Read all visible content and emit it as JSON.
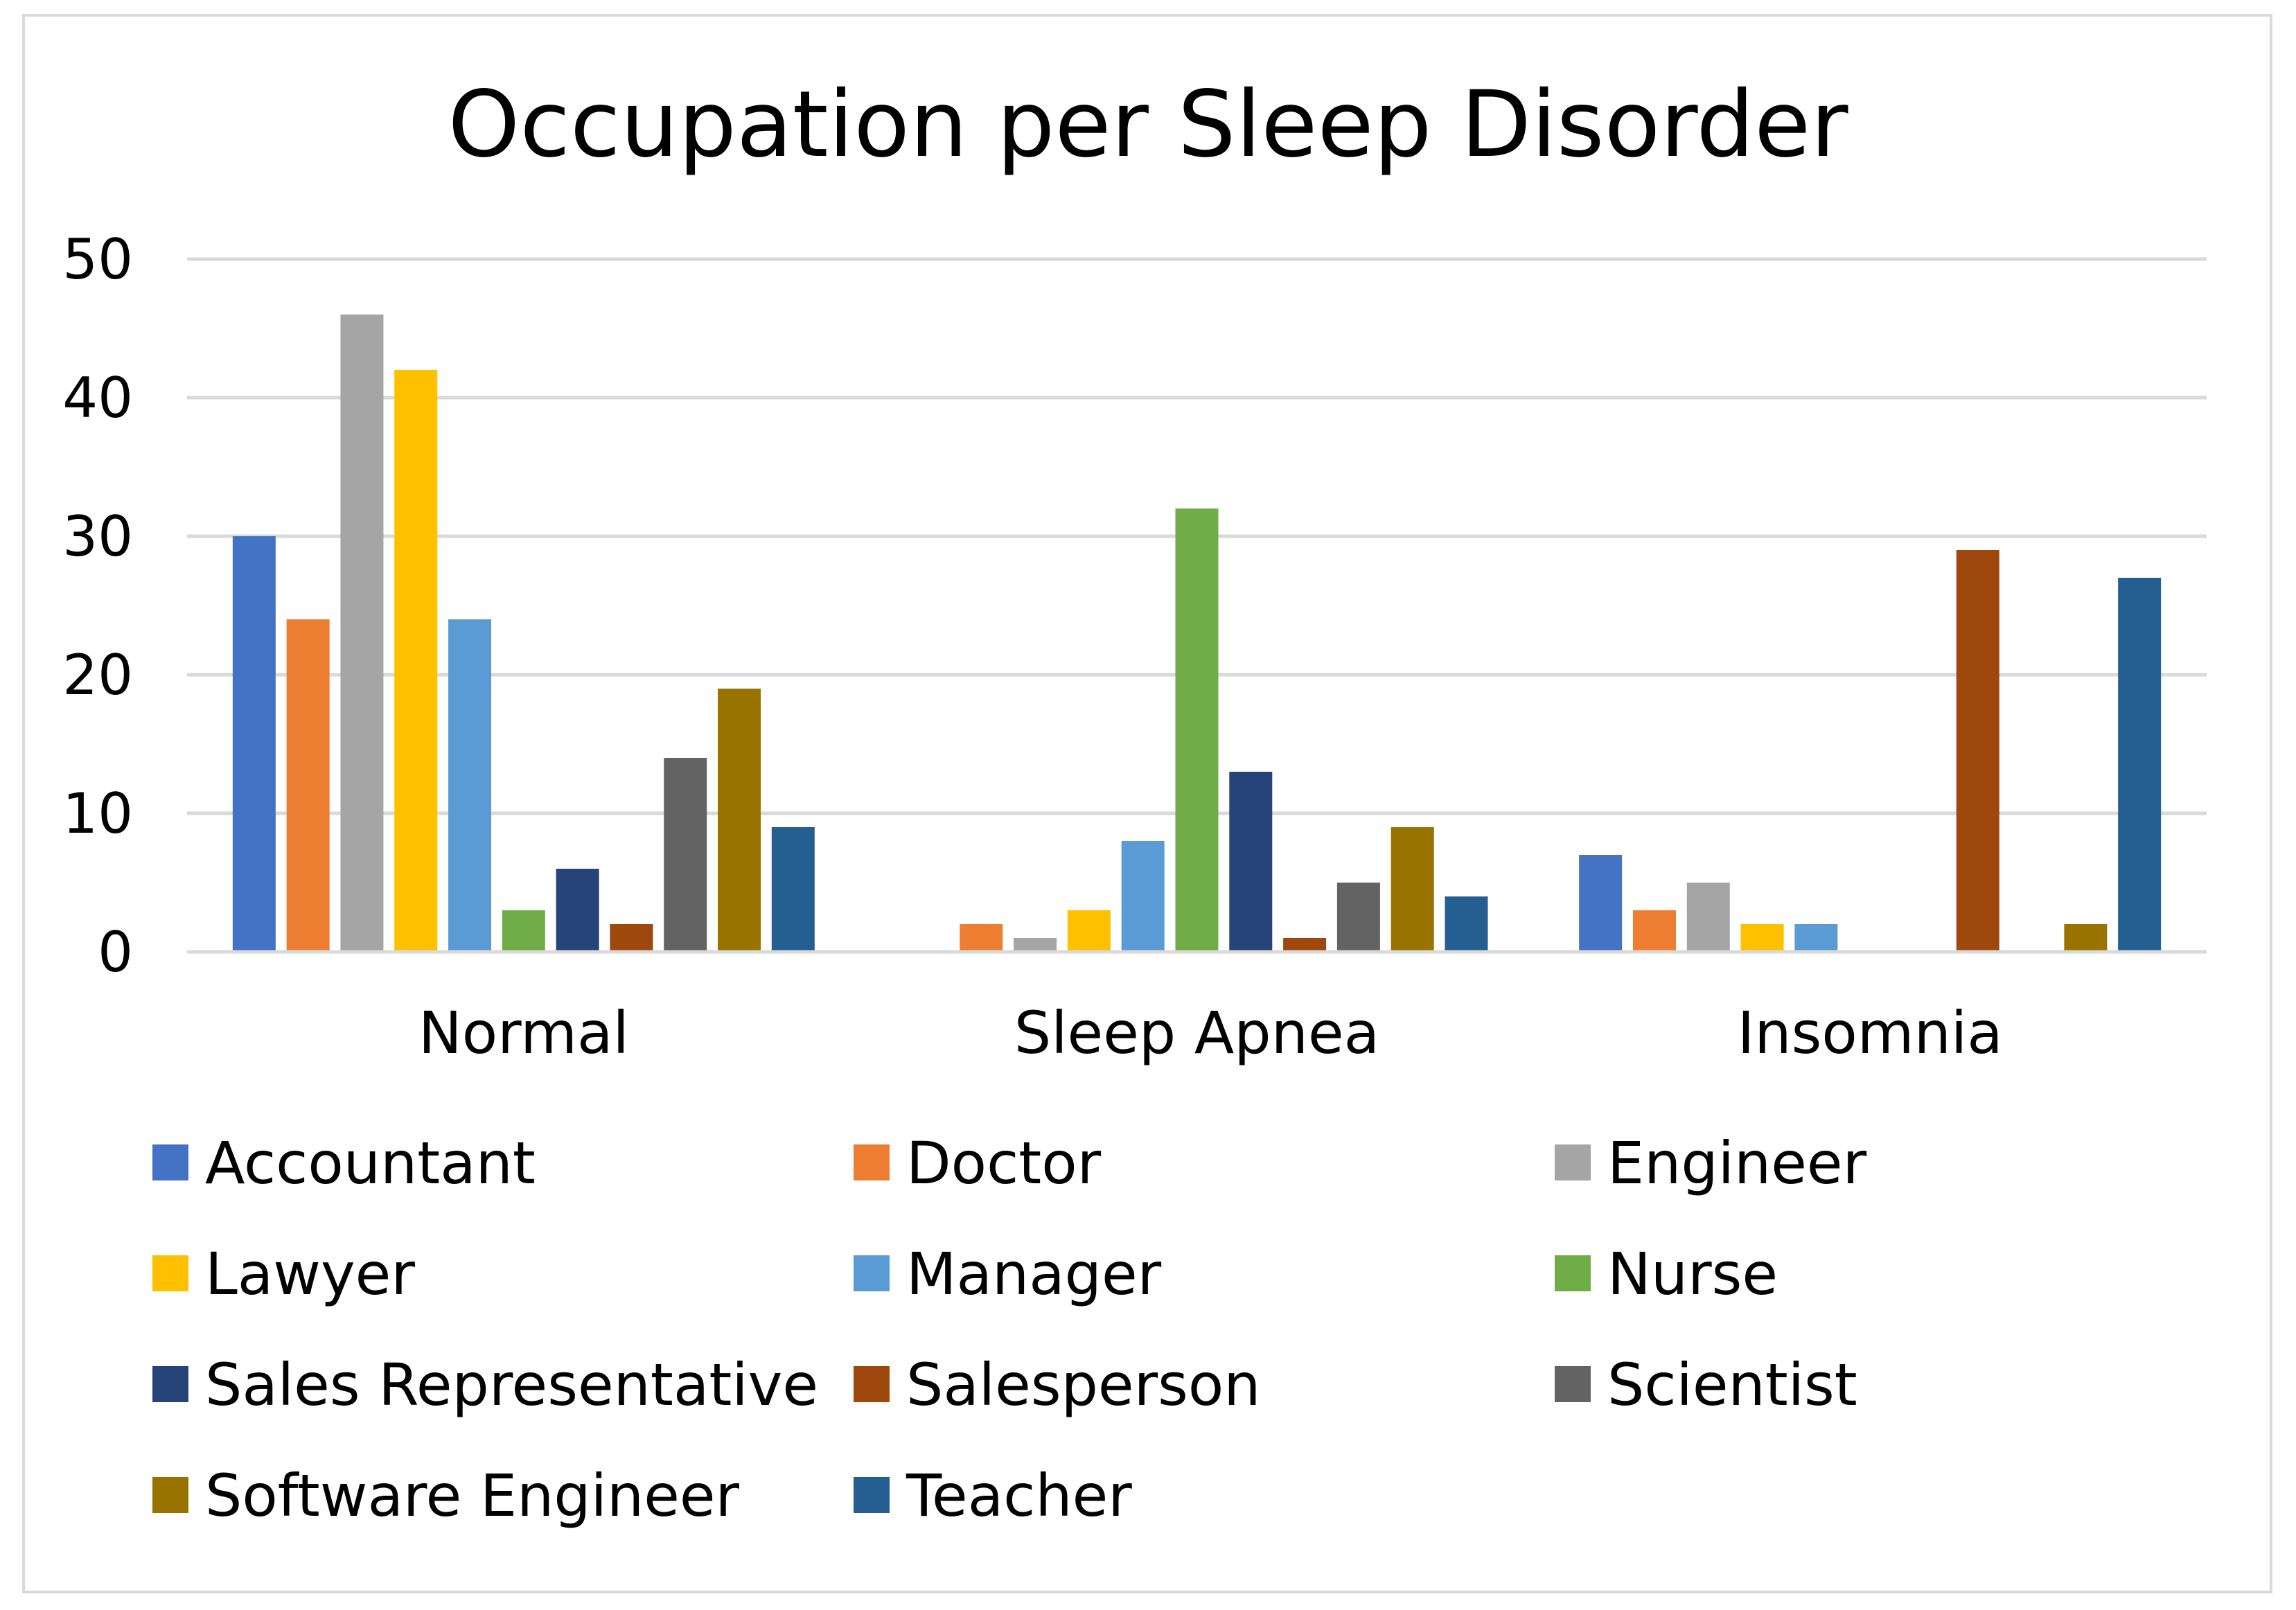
{
  "chart_data": {
    "type": "bar",
    "title": "Occupation per Sleep Disorder",
    "xlabel": "",
    "ylabel": "",
    "ylim": [
      0,
      50
    ],
    "yticks": [
      "0",
      "10",
      "20",
      "30",
      "40",
      "50"
    ],
    "grid": true,
    "legend_position": "bottom",
    "categories": [
      "Normal",
      "Sleep Apnea",
      "Insomnia"
    ],
    "series": [
      {
        "name": "Accountant",
        "color": "#4472C4",
        "values": [
          30,
          0,
          7
        ]
      },
      {
        "name": "Doctor",
        "color": "#ED7D31",
        "values": [
          24,
          2,
          3
        ]
      },
      {
        "name": "Engineer",
        "color": "#A5A5A5",
        "values": [
          46,
          1,
          5
        ]
      },
      {
        "name": "Lawyer",
        "color": "#FFC000",
        "values": [
          42,
          3,
          2
        ]
      },
      {
        "name": "Manager",
        "color": "#5B9BD5",
        "values": [
          24,
          8,
          2
        ]
      },
      {
        "name": "Nurse",
        "color": "#70AD47",
        "values": [
          3,
          32,
          0
        ]
      },
      {
        "name": "Sales Representative",
        "color": "#264478",
        "values": [
          6,
          13,
          0
        ]
      },
      {
        "name": "Salesperson",
        "color": "#9E480E",
        "values": [
          2,
          1,
          29
        ]
      },
      {
        "name": "Scientist",
        "color": "#636363",
        "values": [
          14,
          5,
          0
        ]
      },
      {
        "name": "Software Engineer",
        "color": "#997300",
        "values": [
          19,
          9,
          2
        ]
      },
      {
        "name": "Teacher",
        "color": "#255E91",
        "values": [
          9,
          4,
          27
        ]
      }
    ]
  }
}
